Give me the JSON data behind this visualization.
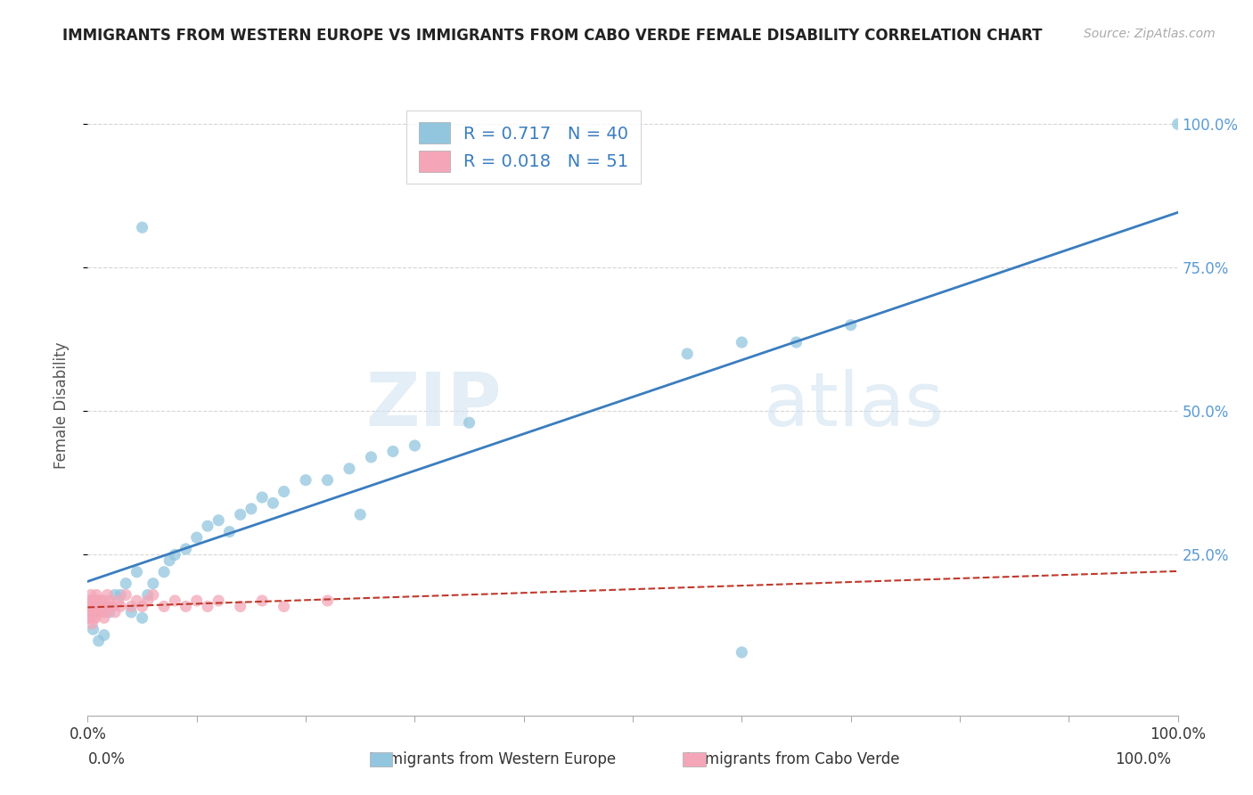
{
  "title": "IMMIGRANTS FROM WESTERN EUROPE VS IMMIGRANTS FROM CABO VERDE FEMALE DISABILITY CORRELATION CHART",
  "source": "Source: ZipAtlas.com",
  "ylabel": "Female Disability",
  "legend_blue_r": "R = 0.717",
  "legend_blue_n": "N = 40",
  "legend_pink_r": "R = 0.018",
  "legend_pink_n": "N = 51",
  "watermark_zip": "ZIP",
  "watermark_atlas": "atlas",
  "blue_scatter_color": "#92c5de",
  "pink_scatter_color": "#f4a6b8",
  "blue_line_color": "#3a7dbf",
  "pink_line_color": "#c0392b",
  "legend_text_color": "#3a7dbf",
  "title_color": "#222222",
  "grid_color": "#cccccc",
  "background_color": "#ffffff",
  "ylabel_color": "#555555",
  "right_axis_color": "#5b9bd5",
  "bottom_label_color_blue": "#5b9bd5",
  "bottom_label_color_pink": "#e8a0b0",
  "source_color": "#aaaaaa",
  "blue_x": [
    0.005,
    0.01,
    0.015,
    0.02,
    0.025,
    0.03,
    0.035,
    0.04,
    0.045,
    0.05,
    0.055,
    0.06,
    0.07,
    0.075,
    0.08,
    0.09,
    0.1,
    0.11,
    0.12,
    0.13,
    0.14,
    0.15,
    0.16,
    0.17,
    0.18,
    0.2,
    0.22,
    0.24,
    0.26,
    0.28,
    0.3,
    0.35,
    0.55,
    0.6,
    0.65,
    0.7,
    1.0,
    0.05,
    0.25,
    0.6
  ],
  "blue_y": [
    0.12,
    0.1,
    0.11,
    0.15,
    0.18,
    0.18,
    0.2,
    0.15,
    0.22,
    0.14,
    0.18,
    0.2,
    0.22,
    0.24,
    0.25,
    0.26,
    0.28,
    0.3,
    0.31,
    0.29,
    0.32,
    0.33,
    0.35,
    0.34,
    0.36,
    0.38,
    0.38,
    0.4,
    0.42,
    0.43,
    0.44,
    0.48,
    0.6,
    0.62,
    0.62,
    0.65,
    1.0,
    0.82,
    0.32,
    0.08
  ],
  "pink_x": [
    0.0,
    0.0,
    0.001,
    0.001,
    0.002,
    0.002,
    0.003,
    0.003,
    0.004,
    0.004,
    0.005,
    0.005,
    0.006,
    0.006,
    0.007,
    0.007,
    0.008,
    0.008,
    0.009,
    0.01,
    0.01,
    0.011,
    0.012,
    0.013,
    0.014,
    0.015,
    0.016,
    0.017,
    0.018,
    0.019,
    0.02,
    0.022,
    0.025,
    0.028,
    0.03,
    0.035,
    0.04,
    0.045,
    0.05,
    0.055,
    0.06,
    0.07,
    0.08,
    0.09,
    0.1,
    0.11,
    0.12,
    0.14,
    0.16,
    0.18,
    0.22
  ],
  "pink_y": [
    0.14,
    0.16,
    0.15,
    0.17,
    0.14,
    0.16,
    0.15,
    0.18,
    0.13,
    0.17,
    0.16,
    0.14,
    0.17,
    0.15,
    0.16,
    0.14,
    0.18,
    0.15,
    0.17,
    0.16,
    0.15,
    0.17,
    0.16,
    0.15,
    0.17,
    0.14,
    0.16,
    0.15,
    0.18,
    0.16,
    0.17,
    0.16,
    0.15,
    0.17,
    0.16,
    0.18,
    0.16,
    0.17,
    0.16,
    0.17,
    0.18,
    0.16,
    0.17,
    0.16,
    0.17,
    0.16,
    0.17,
    0.16,
    0.17,
    0.16,
    0.17
  ],
  "xlim": [
    0.0,
    1.0
  ],
  "ylim": [
    -0.03,
    1.05
  ],
  "xticks": [
    0.0,
    0.1,
    0.2,
    0.3,
    0.4,
    0.5,
    0.6,
    0.7,
    0.8,
    0.9,
    1.0
  ],
  "yticks_right": [
    0.25,
    0.5,
    0.75,
    1.0
  ],
  "ytick_labels_right": [
    "25.0%",
    "50.0%",
    "75.0%",
    "100.0%"
  ]
}
